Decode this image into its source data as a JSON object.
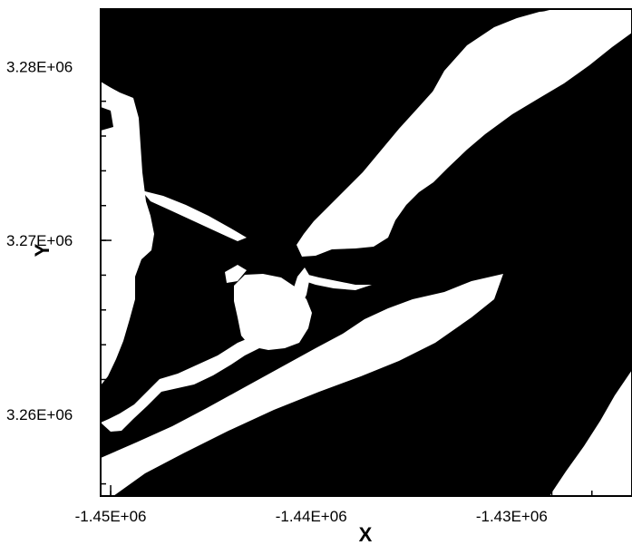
{
  "chart_data": {
    "type": "heatmap",
    "title": "",
    "xlabel": "X",
    "ylabel": "Y",
    "xlim": [
      -1450500,
      -1424000
    ],
    "ylim": [
      3255300,
      3283300
    ],
    "x_ticks": [
      {
        "value": -1450000,
        "label": "-1.45E+06"
      },
      {
        "value": -1440000,
        "label": "-1.44E+06"
      },
      {
        "value": -1430000,
        "label": "-1.43E+06"
      }
    ],
    "y_ticks": [
      {
        "value": 3280000,
        "label": "3.28E+06"
      },
      {
        "value": 3270000,
        "label": "3.27E+06"
      },
      {
        "value": 3260000,
        "label": "3.26E+06"
      }
    ],
    "x_minor_step": 2000,
    "y_minor_step": 2000,
    "grid": false,
    "legend": "none",
    "colors": {
      "filled": "#000000",
      "background": "#ffffff"
    }
  }
}
